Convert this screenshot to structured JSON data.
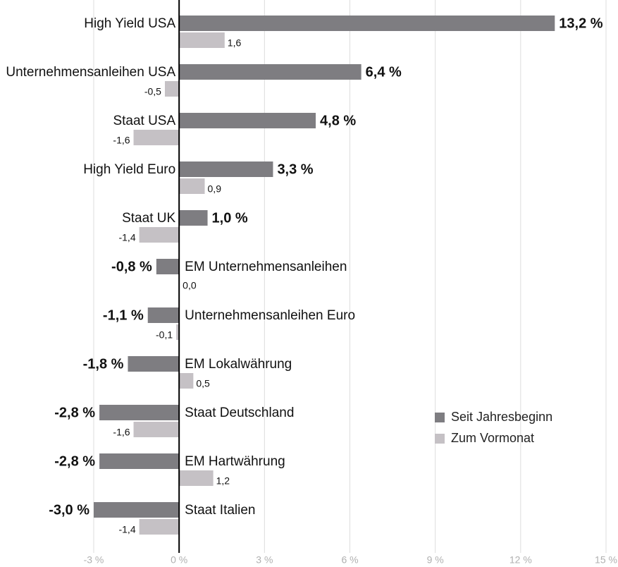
{
  "chart_data": {
    "type": "bar",
    "orientation": "horizontal",
    "categories": [
      "High Yield USA",
      "Unternehmensanleihen USA",
      "Staat USA",
      "High Yield Euro",
      "Staat UK",
      "EM Unternehmensanleihen",
      "Unternehmensanleihen Euro",
      "EM Lokalwährung",
      "Staat Deutschland",
      "EM Hartwährung",
      "Staat Italien"
    ],
    "series": [
      {
        "name": "Seit Jahresbeginn",
        "color": "#7e7d81",
        "values": [
          13.2,
          6.4,
          4.8,
          3.3,
          1.0,
          -0.8,
          -1.1,
          -1.8,
          -2.8,
          -2.8,
          -3.0
        ],
        "value_labels": [
          "13,2 %",
          "6,4 %",
          "4,8 %",
          "3,3 %",
          "1,0 %",
          "-0,8 %",
          "-1,1 %",
          "-1,8 %",
          "-2,8 %",
          "-2,8 %",
          "-3,0 %"
        ]
      },
      {
        "name": "Zum Vormonat",
        "color": "#c5c1c5",
        "values": [
          1.6,
          -0.5,
          -1.6,
          0.9,
          -1.4,
          0.0,
          -0.1,
          0.5,
          -1.6,
          1.2,
          -1.4
        ],
        "value_labels": [
          "1,6",
          "-0,5",
          "-1,6",
          "0,9",
          "-1,4",
          "0,0",
          "-0,1",
          "0,5",
          "-1,6",
          "1,2",
          "-1,4"
        ]
      }
    ],
    "xlim": [
      -3,
      15
    ],
    "xticks": [
      {
        "value": -3,
        "label": "-3 %"
      },
      {
        "value": 0,
        "label": "0 %"
      },
      {
        "value": 3,
        "label": "3 %"
      },
      {
        "value": 6,
        "label": "6 %"
      },
      {
        "value": 9,
        "label": "9 %"
      },
      {
        "value": 12,
        "label": "12 %"
      },
      {
        "value": 15,
        "label": "15 %"
      }
    ],
    "grid": true,
    "legend": "lower right"
  }
}
